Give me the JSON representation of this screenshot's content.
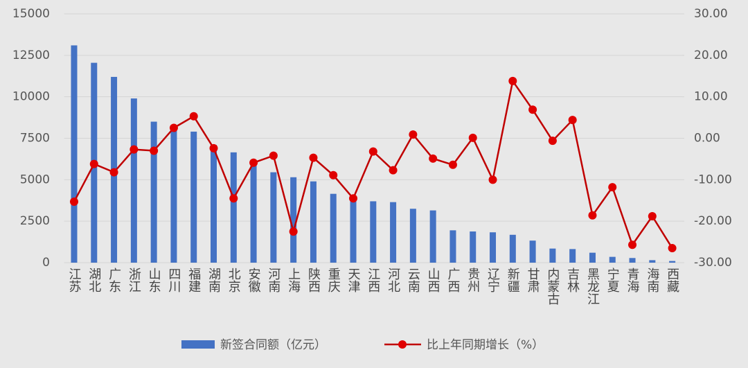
{
  "chart_data": {
    "type": "bar",
    "categories": [
      "江苏",
      "湖北",
      "广东",
      "浙江",
      "山东",
      "四川",
      "福建",
      "湖南",
      "北京",
      "安徽",
      "河南",
      "上海",
      "陕西",
      "重庆",
      "天津",
      "江西",
      "河北",
      "云南",
      "山西",
      "广西",
      "贵州",
      "辽宁",
      "新疆",
      "甘肃",
      "内蒙古",
      "吉林",
      "黑龙江",
      "宁夏",
      "青海",
      "海南",
      "西藏"
    ],
    "series": [
      {
        "name": "新签合同额（亿元）",
        "type": "bar",
        "color": "#4472c4",
        "values": [
          13100,
          12050,
          11200,
          9900,
          8500,
          8100,
          7900,
          7100,
          6650,
          6100,
          5450,
          5150,
          4900,
          4150,
          3900,
          3700,
          3650,
          3250,
          3150,
          1950,
          1880,
          1830,
          1680,
          1330,
          850,
          820,
          600,
          350,
          280,
          150,
          100
        ]
      },
      {
        "name": "比上年同期增长（%）",
        "type": "line",
        "axis": "y2",
        "color": "#c00000",
        "values": [
          -15.3,
          -6.2,
          -8.2,
          -2.7,
          -3.0,
          2.5,
          5.3,
          -2.4,
          -14.5,
          -5.9,
          -4.2,
          -22.5,
          -4.7,
          -8.9,
          -14.5,
          -3.2,
          -7.7,
          0.9,
          -4.9,
          -6.4,
          0.1,
          -10.0,
          13.8,
          6.9,
          -0.6,
          4.4,
          -18.6,
          -11.8,
          -25.7,
          -18.8,
          -26.5
        ]
      }
    ],
    "ylim": [
      0,
      15000
    ],
    "yticks": [
      0,
      2500,
      5000,
      7500,
      10000,
      12500,
      15000
    ],
    "y2lim": [
      -30,
      30
    ],
    "y2ticks": [
      {
        "value": -30,
        "label": "-30.00"
      },
      {
        "value": -20,
        "label": "-20.00"
      },
      {
        "value": -10,
        "label": "-10.00"
      },
      {
        "value": 0,
        "label": "0.00"
      },
      {
        "value": 10,
        "label": "10.00"
      },
      {
        "value": 20,
        "label": "20.00"
      },
      {
        "value": 30,
        "label": "30.00"
      }
    ],
    "grid": true,
    "legend": "bottom"
  }
}
